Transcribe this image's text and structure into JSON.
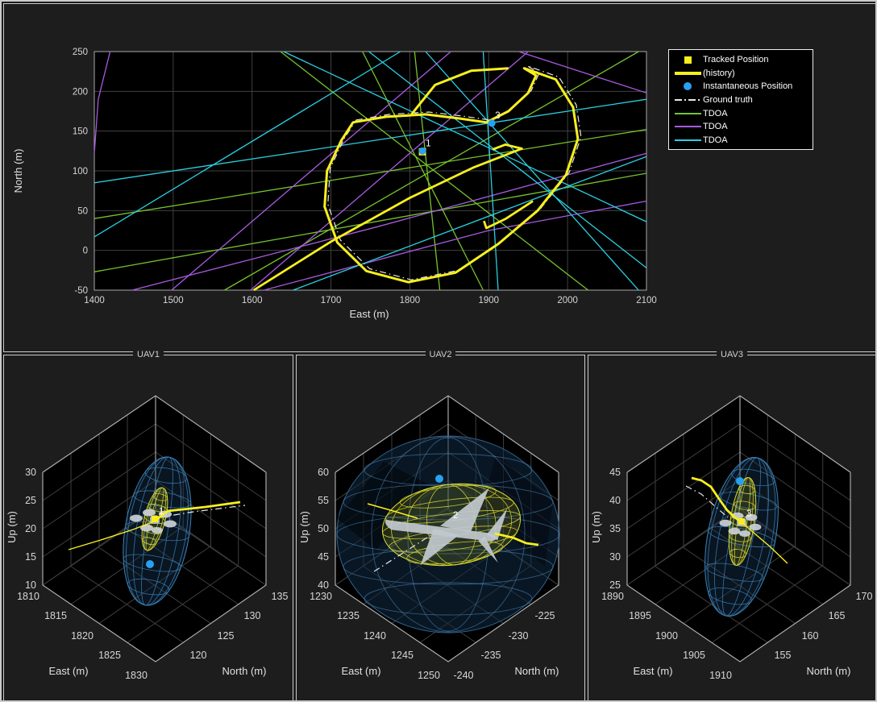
{
  "colors": {
    "figure_bg": "#1d1d1d",
    "axes_bg": "#000000",
    "grid": "#414141",
    "axis": "#a8a8a8",
    "tick_text": "#d6d6d6",
    "track_yellow": "#f8ef1e",
    "instant_blue": "#29a0f0",
    "tdoa_green": "#77c32d",
    "tdoa_purple": "#a85ae0",
    "tdoa_cyan": "#2ad0e2",
    "ground_truth": "#e8e8e8",
    "wire_blue": "#3b82b8",
    "wire_yellow": "#d6d62e",
    "panel_border": "#cbcbcb"
  },
  "legend": {
    "entries": [
      {
        "swatch": "yellow-square",
        "label": "Tracked Position"
      },
      {
        "swatch": "yellow-thick-line",
        "label": "(history)"
      },
      {
        "swatch": "blue-dot",
        "label": "Instantaneous Position"
      },
      {
        "swatch": "dashdot-line",
        "label": "Ground truth"
      },
      {
        "swatch": "green-line",
        "label": "TDOA"
      },
      {
        "swatch": "purple-line",
        "label": "TDOA"
      },
      {
        "swatch": "cyan-line",
        "label": "TDOA"
      }
    ]
  },
  "chart_data": [
    {
      "type": "line",
      "title": "",
      "xlabel": "East (m)",
      "ylabel": "North (m)",
      "xlim": [
        1400,
        2100
      ],
      "ylim": [
        -50,
        250
      ],
      "x_ticks": [
        1400,
        1500,
        1600,
        1700,
        1800,
        1900,
        2000,
        2100
      ],
      "y_ticks": [
        -50,
        0,
        50,
        100,
        150,
        200,
        250
      ],
      "grid": true,
      "legend_position": "outside-right-top",
      "series": [
        {
          "name": "tracked-history-loop",
          "color": "yellow",
          "width": 3,
          "closed": true,
          "points": [
            [
              1728,
              161
            ],
            [
              1770,
              168
            ],
            [
              1820,
              171
            ],
            [
              1862,
              166
            ],
            [
              1897,
              161
            ],
            [
              1925,
              175
            ],
            [
              1950,
              198
            ],
            [
              1960,
              220
            ],
            [
              1945,
              229
            ],
            [
              1985,
              215
            ],
            [
              2007,
              180
            ],
            [
              2013,
              140
            ],
            [
              1998,
              95
            ],
            [
              1962,
              50
            ],
            [
              1912,
              8
            ],
            [
              1858,
              -28
            ],
            [
              1798,
              -40
            ],
            [
              1745,
              -26
            ],
            [
              1708,
              10
            ],
            [
              1692,
              55
            ],
            [
              1695,
              100
            ],
            [
              1713,
              138
            ]
          ]
        },
        {
          "name": "tracked-history-upper-lobe",
          "color": "yellow",
          "width": 3,
          "points": [
            [
              1802,
              171
            ],
            [
              1832,
              208
            ],
            [
              1878,
              226
            ],
            [
              1925,
              229
            ]
          ]
        },
        {
          "name": "tracked-history-tail",
          "color": "yellow",
          "width": 2.8,
          "points": [
            [
              1602,
              -50
            ],
            [
              1700,
              11
            ],
            [
              1800,
              66
            ],
            [
              1880,
              104
            ],
            [
              1942,
              128
            ],
            [
              1921,
              133
            ],
            [
              1905,
              127
            ]
          ]
        },
        {
          "name": "tracked-history-seg2",
          "color": "yellow",
          "width": 2.8,
          "points": [
            [
              1956,
              62
            ],
            [
              1922,
              40
            ],
            [
              1897,
              28
            ],
            [
              1894,
              37
            ]
          ]
        },
        {
          "name": "ground-truth",
          "style": "dashdot",
          "follows": "tracked-history-loop",
          "offset_east": 4,
          "offset_north": 3
        }
      ],
      "tdoa_lines": {
        "green": [
          [
            [
              1400,
              40
            ],
            [
              2100,
              152
            ]
          ],
          [
            [
              1400,
              -27
            ],
            [
              2100,
              97
            ]
          ],
          [
            [
              1740,
              250
            ],
            [
              1893,
              -50
            ]
          ],
          [
            [
              1636,
              250
            ],
            [
              2026,
              -50
            ]
          ],
          [
            [
              1806,
              250
            ],
            [
              1838,
              -50
            ]
          ],
          [
            [
              1565,
              -50
            ],
            [
              2090,
              250
            ]
          ]
        ],
        "purple": [
          [
            [
              1400,
              122
            ],
            [
              1405,
              190
            ],
            [
              1420,
              250
            ]
          ],
          [
            [
              1498,
              -50
            ],
            [
              1852,
              250
            ]
          ],
          [
            [
              1598,
              -50
            ],
            [
              1950,
              250
            ]
          ],
          [
            [
              1448,
              -50
            ],
            [
              1760,
              30
            ],
            [
              2100,
              122
            ]
          ],
          [
            [
              1615,
              -50
            ],
            [
              1900,
              25
            ],
            [
              2100,
              62
            ]
          ],
          [
            [
              1938,
              250
            ],
            [
              2100,
              198
            ]
          ]
        ],
        "cyan": [
          [
            [
              1400,
              85
            ],
            [
              2100,
              190
            ]
          ],
          [
            [
              1400,
              17
            ],
            [
              1788,
              250
            ]
          ],
          [
            [
              1820,
              250
            ],
            [
              2090,
              -50
            ]
          ],
          [
            [
              1893,
              250
            ],
            [
              1912,
              -50
            ]
          ],
          [
            [
              1748,
              250
            ],
            [
              2100,
              -22
            ]
          ],
          [
            [
              1640,
              250
            ],
            [
              2100,
              36
            ]
          ],
          [
            [
              1652,
              -50
            ],
            [
              2100,
              118
            ]
          ]
        ]
      },
      "markers": [
        {
          "label": "1",
          "east": 1816,
          "north": 124,
          "tracked": true,
          "instantaneous": true
        },
        {
          "label": "3",
          "east": 1904,
          "north": 159,
          "tracked": false,
          "instantaneous": true
        }
      ]
    },
    {
      "type": "3d-view",
      "title": "UAV1",
      "xlabel": "East (m)",
      "ylabel": "North (m)",
      "zlabel": "Up (m)",
      "east_ticks": [
        1810,
        1815,
        1820,
        1825,
        1830
      ],
      "north_ticks": [
        120,
        125,
        130,
        135
      ],
      "north_slot_start": 1,
      "up_ticks": [
        10,
        15,
        20,
        25,
        30
      ],
      "marker_label": "1",
      "position_estimate": {
        "east": 1820,
        "north": 127,
        "up": 20
      }
    },
    {
      "type": "3d-view",
      "title": "UAV2",
      "xlabel": "East (m)",
      "ylabel": "North (m)",
      "zlabel": "Up (m)",
      "east_ticks": [
        1230,
        1235,
        1240,
        1245,
        1250
      ],
      "north_ticks": [
        -240,
        -235,
        -230,
        -225
      ],
      "north_slot_start": 0,
      "up_ticks": [
        40,
        45,
        50,
        55,
        60
      ],
      "marker_label": "2",
      "position_estimate": {
        "east": 1240,
        "north": -232,
        "up": 50
      }
    },
    {
      "type": "3d-view",
      "title": "UAV3",
      "xlabel": "East (m)",
      "ylabel": "North (m)",
      "zlabel": "Up (m)",
      "east_ticks": [
        1890,
        1895,
        1900,
        1905,
        1910
      ],
      "north_ticks": [
        155,
        160,
        165,
        170
      ],
      "north_slot_start": 1,
      "up_ticks": [
        25,
        30,
        35,
        40,
        45
      ],
      "marker_label": "3",
      "position_estimate": {
        "east": 1900,
        "north": 161,
        "up": 35
      }
    }
  ]
}
